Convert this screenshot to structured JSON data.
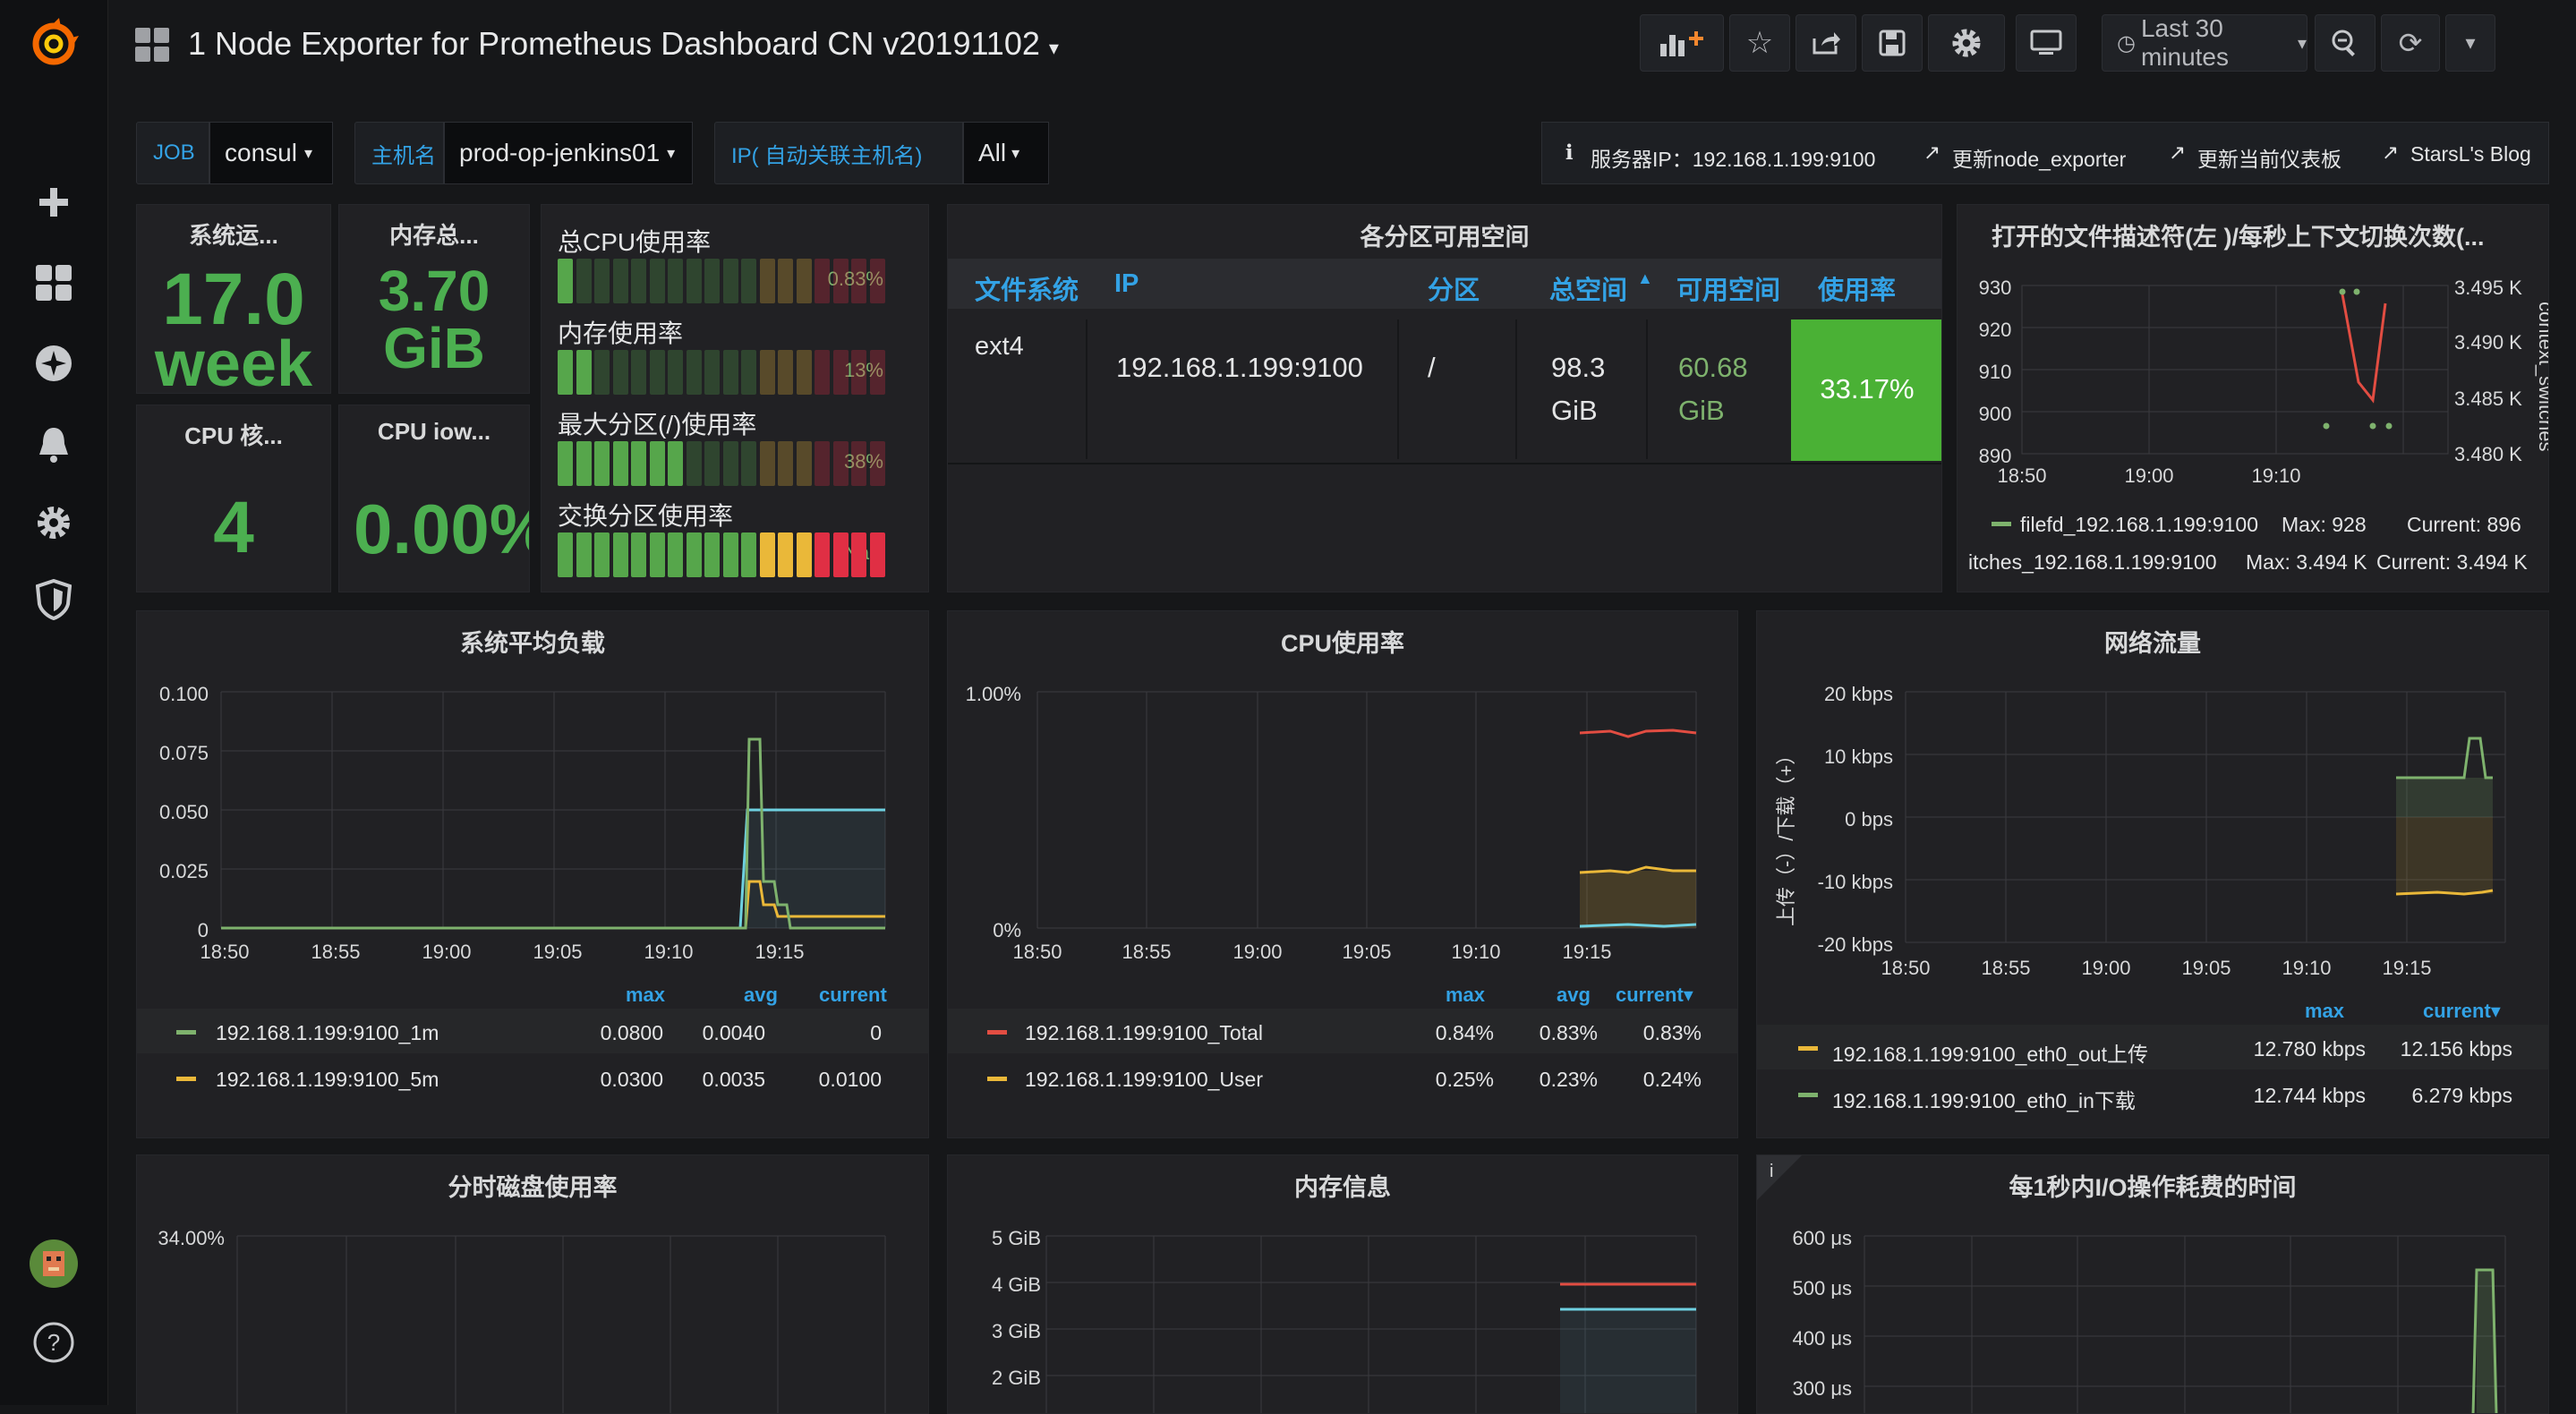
{
  "dashboard_title": "1 Node Exporter for Prometheus Dashboard CN v20191102",
  "time_range_label": "Last 30 minutes",
  "sidebar": {
    "logo": "grafana-logo-icon",
    "icons": [
      "plus-icon",
      "dashboards-icon",
      "explore-icon",
      "alert-bell-icon",
      "gear-icon",
      "shield-icon",
      "avatar",
      "help-icon"
    ]
  },
  "variables": {
    "job": {
      "label": "JOB",
      "value": "consul"
    },
    "hostname": {
      "label": "主机名",
      "value": "prod-op-jenkins01"
    },
    "ip": {
      "label": "IP( 自动关联主机名)",
      "value": "All"
    }
  },
  "links": {
    "server_ip": "服务器IP：192.168.1.199:9100",
    "update_exporter": "更新node_exporter",
    "update_dashboard": "更新当前仪表板",
    "blog": "StarsL's Blog"
  },
  "stats": {
    "uptime": {
      "title": "系统运...",
      "value_line1": "17.0",
      "value_line2": "week"
    },
    "memory_total": {
      "title": "内存总...",
      "value_line1": "3.70",
      "value_line2": "GiB"
    },
    "cpu_cores": {
      "title": "CPU 核...",
      "value": "4"
    },
    "cpu_iowait": {
      "title": "CPU iow...",
      "value": "0.00%"
    }
  },
  "gauges": [
    {
      "title": "总CPU使用率",
      "value": "0.83%",
      "percent": 0.83
    },
    {
      "title": "内存使用率",
      "value": "13%",
      "percent": 13
    },
    {
      "title": "最大分区(/)使用率",
      "value": "38%",
      "percent": 38
    },
    {
      "title": "交换分区使用率",
      "value": "NaN",
      "percent": 100
    }
  ],
  "partition_table": {
    "title": "各分区可用空间",
    "columns": [
      "文件系统",
      "IP",
      "分区",
      "总空间",
      "可用空间",
      "使用率"
    ],
    "rows": [
      {
        "fs": "ext4",
        "ip": "192.168.1.199:9100",
        "mount": "/",
        "total_1": "98.3",
        "total_2": "GiB",
        "avail_1": "60.68",
        "avail_2": "GiB",
        "usage": "33.17%"
      }
    ]
  },
  "filefd_panel": {
    "title": "打开的文件描述符(左 )/每秒上下文切换次数(...",
    "y_left_ticks": [
      "930",
      "920",
      "910",
      "900",
      "890"
    ],
    "y_right_ticks": [
      "3.495 K",
      "3.490 K",
      "3.485 K",
      "3.480 K"
    ],
    "y_right_label": "context_switches",
    "x_ticks": [
      "18:50",
      "19:00",
      "19:10"
    ],
    "legend": [
      {
        "name": "filefd_192.168.1.199:9100",
        "max": "Max: 928",
        "current": "Current: 896",
        "color": "#7eb26d"
      },
      {
        "name": "itches_192.168.1.199:9100",
        "max": "Max: 3.494 K",
        "current": "Current: 3.494 K",
        "color": "#e24d42"
      }
    ]
  },
  "load_panel": {
    "title": "系统平均负载",
    "y_ticks": [
      "0.100",
      "0.075",
      "0.050",
      "0.025",
      "0"
    ],
    "x_ticks": [
      "18:50",
      "18:55",
      "19:00",
      "19:05",
      "19:10",
      "19:15"
    ],
    "legend_headers": [
      "max",
      "avg",
      "current"
    ],
    "legend": [
      {
        "name": "192.168.1.199:9100_1m",
        "max": "0.0800",
        "avg": "0.0040",
        "current": "0",
        "color": "#7eb26d"
      },
      {
        "name": "192.168.1.199:9100_5m",
        "max": "0.0300",
        "avg": "0.0035",
        "current": "0.0100",
        "color": "#eab839"
      }
    ]
  },
  "cpu_panel": {
    "title": "CPU使用率",
    "y_ticks": [
      "1.00%",
      "0%"
    ],
    "x_ticks": [
      "18:50",
      "18:55",
      "19:00",
      "19:05",
      "19:10",
      "19:15"
    ],
    "legend_headers": [
      "max",
      "avg",
      "current▾"
    ],
    "legend": [
      {
        "name": "192.168.1.199:9100_Total",
        "max": "0.84%",
        "avg": "0.83%",
        "current": "0.83%",
        "color": "#e24d42"
      },
      {
        "name": "192.168.1.199:9100_User",
        "max": "0.25%",
        "avg": "0.23%",
        "current": "0.24%",
        "color": "#eab839"
      }
    ]
  },
  "net_panel": {
    "title": "网络流量",
    "y_label": "上传（-）/下载（+）",
    "y_ticks": [
      "20 kbps",
      "10 kbps",
      "0 bps",
      "-10 kbps",
      "-20 kbps"
    ],
    "x_ticks": [
      "18:50",
      "18:55",
      "19:00",
      "19:05",
      "19:10",
      "19:15"
    ],
    "legend_headers": [
      "max",
      "current▾"
    ],
    "legend": [
      {
        "name": "192.168.1.199:9100_eth0_out上传",
        "max": "12.780 kbps",
        "current": "12.156 kbps",
        "color": "#eab839"
      },
      {
        "name": "192.168.1.199:9100_eth0_in下载",
        "max": "12.744 kbps",
        "current": "6.279 kbps",
        "color": "#7eb26d"
      }
    ]
  },
  "disk_panel": {
    "title": "分时磁盘使用率",
    "y_ticks": [
      "34.00%"
    ]
  },
  "mem_panel": {
    "title": "内存信息",
    "y_ticks": [
      "5 GiB",
      "4 GiB",
      "3 GiB",
      "2 GiB"
    ]
  },
  "io_panel": {
    "title": "每1秒内I/O操作耗费的时间",
    "info": "i",
    "y_ticks": [
      "600 μs",
      "500 μs",
      "400 μs",
      "300 μs"
    ]
  }
}
